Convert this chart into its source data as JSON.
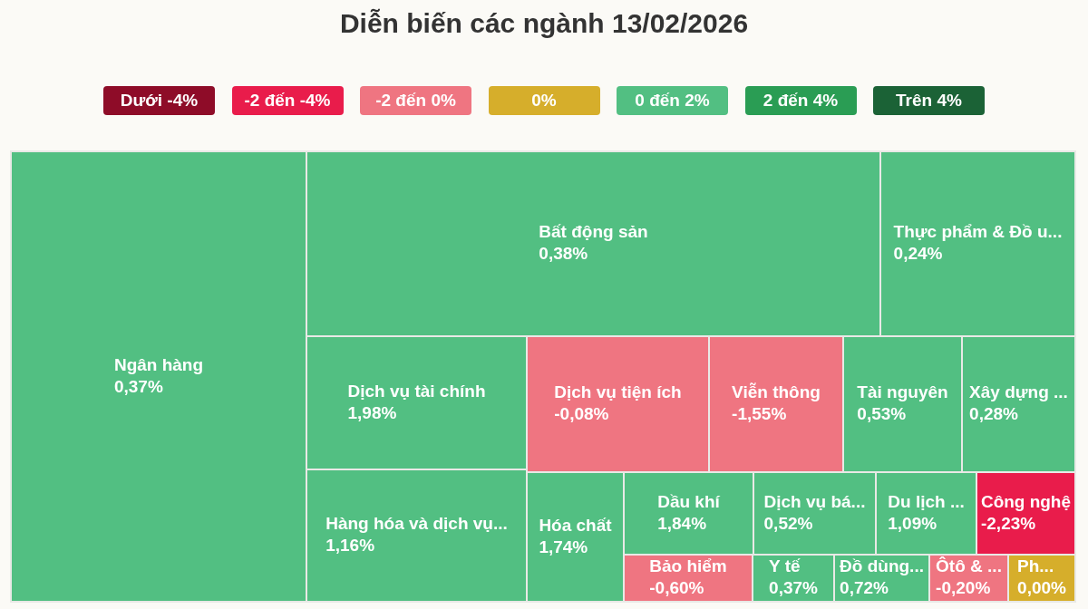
{
  "chart_data": {
    "type": "other",
    "title": "Diễn biến các ngành 13/02/2026",
    "legend": "top",
    "categories": [
      "Ngân hàng",
      "Bất động sản",
      "Thực phẩm & Đồ u...",
      "Dịch vụ tài chính",
      "Dịch vụ tiện ích",
      "Viễn thông",
      "Tài nguyên",
      "Xây dựng ...",
      "Hàng hóa và dịch vụ...",
      "Hóa chất",
      "Dầu khí",
      "Dịch vụ bá...",
      "Du lịch ...",
      "Công nghệ",
      "Bảo hiểm",
      "Y tế",
      "Đồ dùng...",
      "Ôtô & ...",
      "Ph..."
    ],
    "series": [
      {
        "name": "Dưới -4%",
        "color": "#8e0c28",
        "values": [
          null,
          null,
          null,
          null,
          null,
          null,
          null,
          null,
          null,
          null,
          null,
          null,
          null,
          null,
          null,
          null,
          null,
          null,
          null
        ]
      },
      {
        "name": "-2 đến -4%",
        "color": "#e91c4b",
        "values": [
          null,
          null,
          null,
          null,
          null,
          null,
          null,
          null,
          null,
          null,
          null,
          null,
          null,
          -2.23,
          null,
          null,
          null,
          null,
          null
        ],
        "value_labels": [
          null,
          null,
          null,
          null,
          null,
          null,
          null,
          null,
          null,
          null,
          null,
          null,
          null,
          "-2,23%",
          null,
          null,
          null,
          null,
          null
        ]
      },
      {
        "name": "-2 đến 0%",
        "color": "#ef7581",
        "values": [
          null,
          null,
          null,
          null,
          -0.08,
          -1.55,
          null,
          null,
          null,
          null,
          null,
          null,
          null,
          null,
          -0.6,
          null,
          null,
          -0.2,
          null
        ],
        "value_labels": [
          null,
          null,
          null,
          null,
          "-0,08%",
          "-1,55%",
          null,
          null,
          null,
          null,
          null,
          null,
          null,
          null,
          "-0,60%",
          null,
          null,
          "-0,20%",
          null
        ]
      },
      {
        "name": "0%",
        "color": "#d6ae2b",
        "values": [
          null,
          null,
          null,
          null,
          null,
          null,
          null,
          null,
          null,
          null,
          null,
          null,
          null,
          null,
          null,
          null,
          null,
          null,
          0
        ],
        "value_labels": [
          null,
          null,
          null,
          null,
          null,
          null,
          null,
          null,
          null,
          null,
          null,
          null,
          null,
          null,
          null,
          null,
          null,
          null,
          "0,00%"
        ]
      },
      {
        "name": "0 đến 2%",
        "color": "#52bf82",
        "values": [
          0.37,
          0.38,
          0.24,
          1.98,
          null,
          null,
          0.53,
          0.28,
          1.16,
          1.74,
          1.84,
          0.52,
          1.09,
          null,
          null,
          0.37,
          0.72,
          null,
          null
        ],
        "value_labels": [
          "0,37%",
          "0,38%",
          "0,24%",
          "1,98%",
          null,
          null,
          "0,53%",
          "0,28%",
          "1,16%",
          "1,74%",
          "1,84%",
          "0,52%",
          "1,09%",
          null,
          null,
          "0,37%",
          "0,72%",
          null,
          null
        ]
      },
      {
        "name": "2 đến 4%",
        "color": "#2a9d54",
        "values": [
          null,
          null,
          null,
          null,
          null,
          null,
          null,
          null,
          null,
          null,
          null,
          null,
          null,
          null,
          null,
          null,
          null,
          null,
          null
        ]
      },
      {
        "name": "Trên 4%",
        "color": "#1b6236",
        "values": [
          null,
          null,
          null,
          null,
          null,
          null,
          null,
          null,
          null,
          null,
          null,
          null,
          null,
          null,
          null,
          null,
          null,
          null,
          null
        ]
      }
    ]
  }
}
